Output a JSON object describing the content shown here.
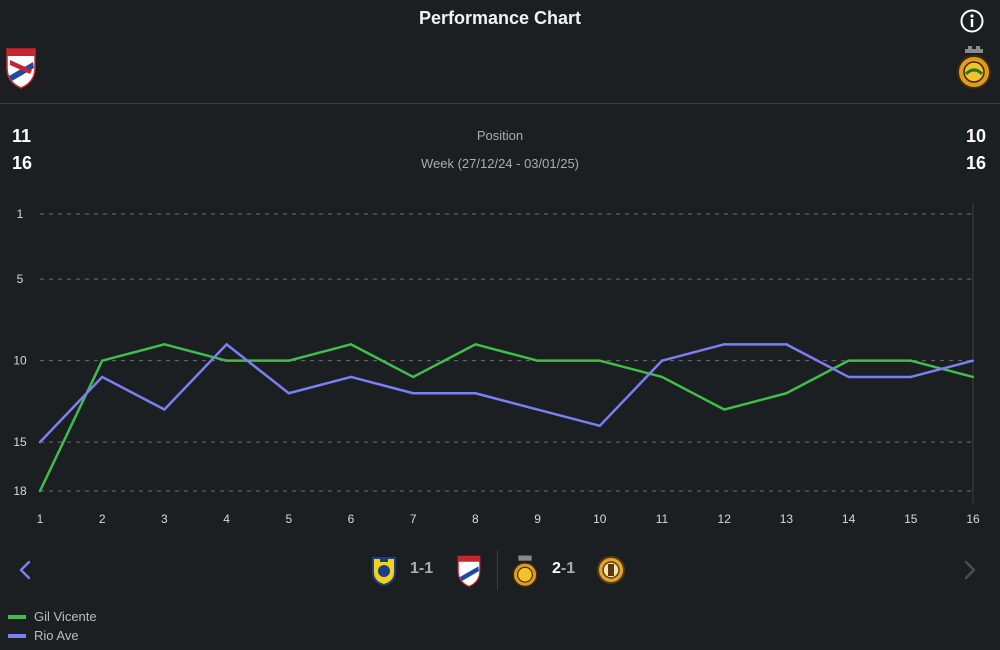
{
  "header": {
    "title": "Performance Chart",
    "info_icon": "info-circle-icon"
  },
  "teams": {
    "home": {
      "name": "Gil Vicente",
      "color": "#3fbf4a",
      "crest_icon": "gil-vicente-crest-icon"
    },
    "away": {
      "name": "Rio Ave",
      "color": "#7b7ff2",
      "crest_icon": "rio-ave-crest-icon"
    }
  },
  "stats": {
    "position_label": "Position",
    "week_label": "Week (27/12/24 - 03/01/25)",
    "home_position": "11",
    "home_week": "16",
    "away_position": "10",
    "away_week": "16"
  },
  "chart_data": {
    "type": "line",
    "title": "Position",
    "xlabel": "",
    "ylabel": "",
    "x": [
      1,
      2,
      3,
      4,
      5,
      6,
      7,
      8,
      9,
      10,
      11,
      12,
      13,
      14,
      15,
      16
    ],
    "y_ticks": [
      1,
      5,
      10,
      15,
      18
    ],
    "ylim": [
      1,
      18
    ],
    "y_inverted": true,
    "grid": true,
    "series": [
      {
        "name": "Gil Vicente",
        "color": "#3fbf4a",
        "values": [
          18,
          10,
          9,
          10,
          10,
          9,
          11,
          9,
          10,
          10,
          11,
          13,
          12,
          10,
          10,
          11
        ]
      },
      {
        "name": "Rio Ave",
        "color": "#7b7ff2",
        "values": [
          15,
          11,
          13,
          9,
          12,
          11,
          12,
          12,
          13,
          14,
          10,
          9,
          9,
          11,
          11,
          10
        ]
      }
    ]
  },
  "fixtures": [
    {
      "home_crest": "arouca-crest-icon",
      "away_crest": "gil-vicente-crest-icon",
      "home_goals": "1",
      "sep": "-",
      "away_goals": "1"
    },
    {
      "home_crest": "rio-ave-crest-icon",
      "away_crest": "academica-crest-icon",
      "home_goals": "2",
      "sep": "-",
      "away_goals": "1"
    }
  ],
  "navigation": {
    "prev_icon": "chevron-left-icon",
    "next_icon": "chevron-right-icon"
  },
  "legend": [
    {
      "label": "Gil Vicente",
      "color": "#3fbf4a"
    },
    {
      "label": "Rio Ave",
      "color": "#7b7ff2"
    }
  ]
}
